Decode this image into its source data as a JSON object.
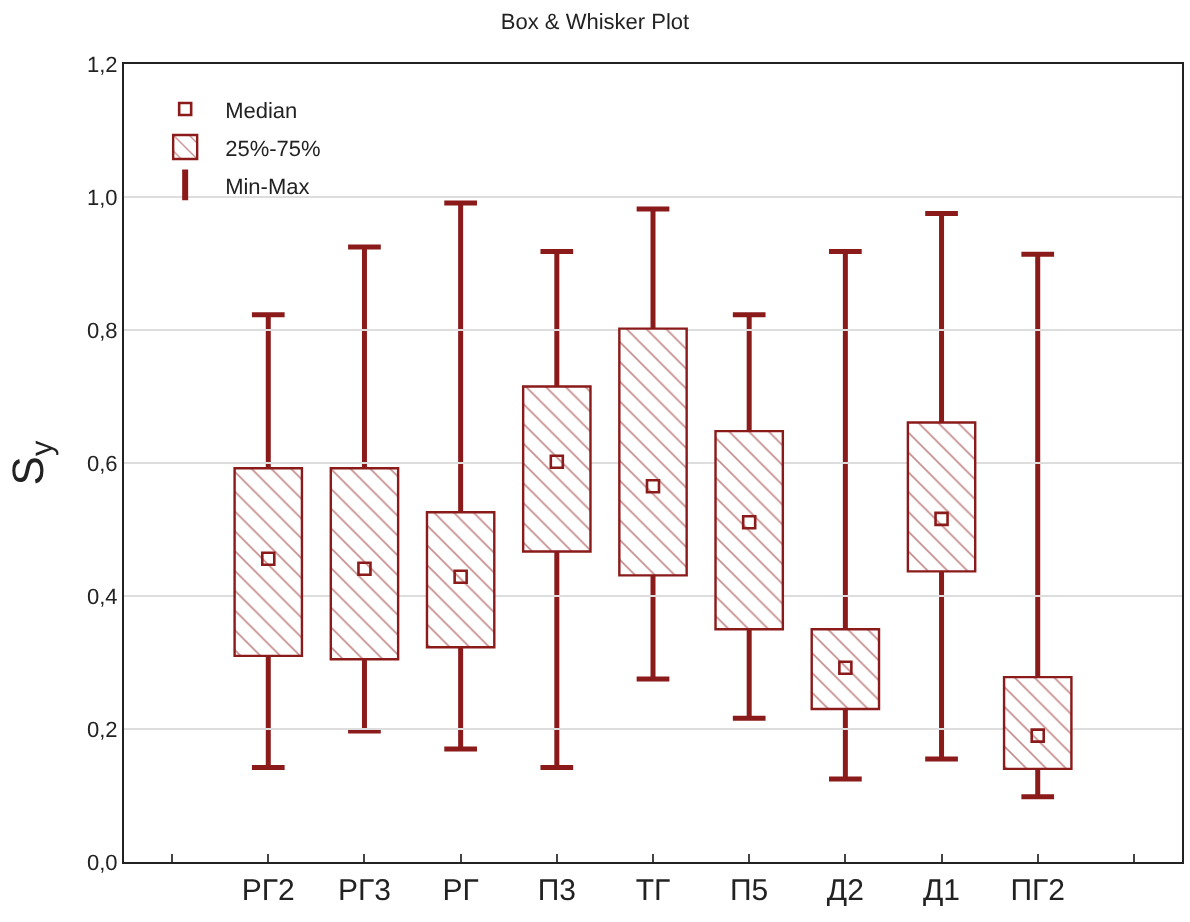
{
  "chart_data": {
    "type": "box",
    "title": "Box & Whisker Plot",
    "ylabel": "S$_{y}$",
    "categories": [
      "РГ2",
      "РГ3",
      "РГ",
      "П3",
      "ТГ",
      "П5",
      "Д2",
      "Д1",
      "ПГ2"
    ],
    "series": [
      {
        "name": "25%-75%",
        "marker": "square",
        "color": "#8b1a1a",
        "boxes": [
          {
            "low": 0.142,
            "q1": 0.31,
            "median": 0.456,
            "q3": 0.592,
            "high": 0.823
          },
          {
            "low": 0.197,
            "q1": 0.305,
            "median": 0.441,
            "q3": 0.592,
            "high": 0.925
          },
          {
            "low": 0.17,
            "q1": 0.323,
            "median": 0.429,
            "q3": 0.526,
            "high": 0.991
          },
          {
            "low": 0.142,
            "q1": 0.467,
            "median": 0.602,
            "q3": 0.715,
            "high": 0.918
          },
          {
            "low": 0.275,
            "q1": 0.431,
            "median": 0.565,
            "q3": 0.802,
            "high": 0.982
          },
          {
            "low": 0.216,
            "q1": 0.35,
            "median": 0.511,
            "q3": 0.648,
            "high": 0.823
          },
          {
            "low": 0.125,
            "q1": 0.23,
            "median": 0.292,
            "q3": 0.35,
            "high": 0.918
          },
          {
            "low": 0.155,
            "q1": 0.437,
            "median": 0.516,
            "q3": 0.661,
            "high": 0.975
          },
          {
            "low": 0.098,
            "q1": 0.14,
            "median": 0.19,
            "q3": 0.278,
            "high": 0.914
          }
        ]
      }
    ],
    "annotations": [
      "Median",
      "Min-Max"
    ],
    "ylim": [
      0,
      1.2
    ],
    "yticks": [
      {
        "value": 0,
        "label": "0,0"
      },
      {
        "value": 0.2,
        "label": "0,2"
      },
      {
        "value": 0.4,
        "label": "0,4"
      },
      {
        "value": 0.6,
        "label": "0,6"
      },
      {
        "value": 0.8,
        "label": "0,8"
      },
      {
        "value": 1.0,
        "label": "1,0"
      },
      {
        "value": 1.2,
        "label": "1,2"
      }
    ],
    "grid": "y",
    "legend": "top left"
  }
}
